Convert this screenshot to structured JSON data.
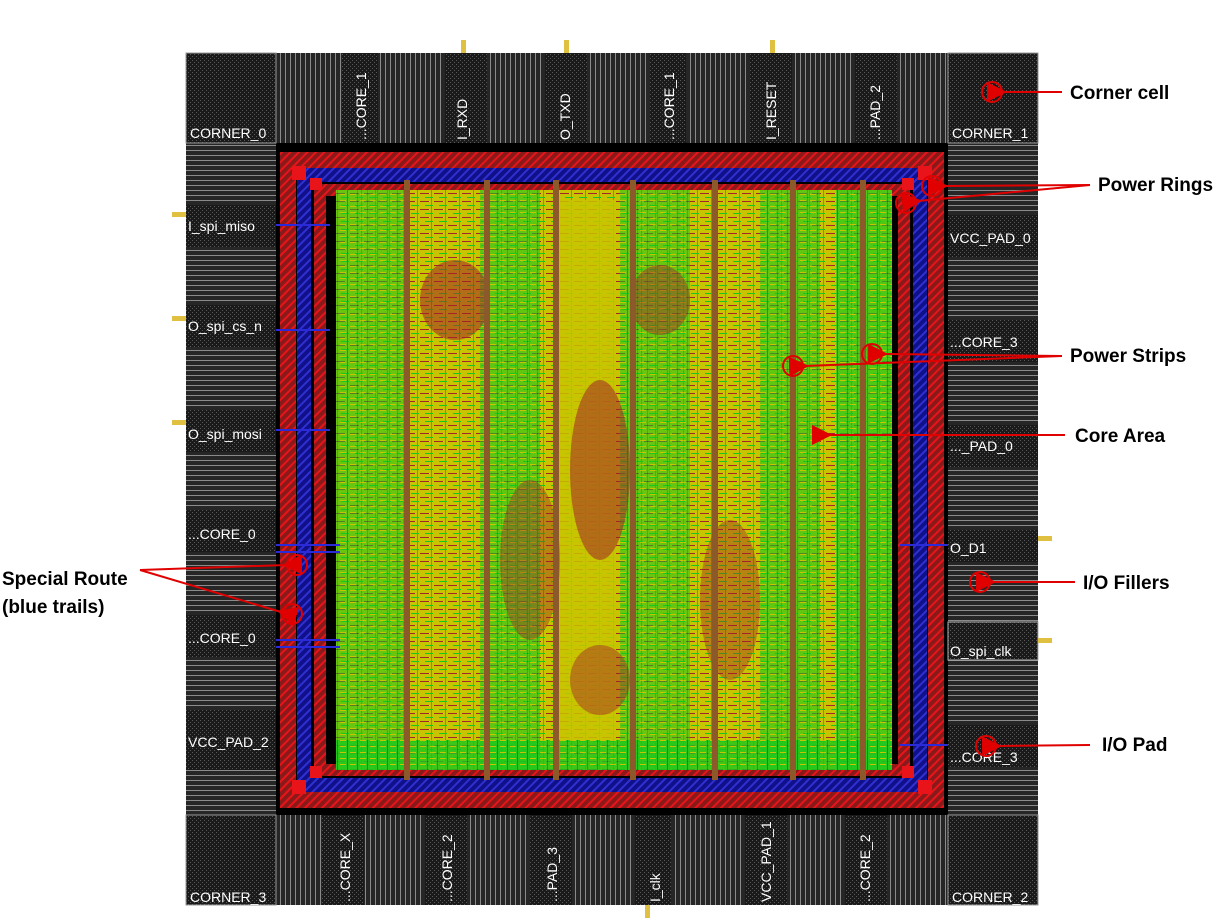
{
  "corners": {
    "top_left": "CORNER_0",
    "top_right": "CORNER_1",
    "bottom_left": "CORNER_3",
    "bottom_right": "CORNER_2"
  },
  "top_pads": [
    "...CORE_1",
    "I_RXD",
    "O_TXD",
    "...CORE_1",
    "I_RESET",
    "...PAD_2"
  ],
  "bottom_pads": [
    "...CORE_X",
    "...CORE_2",
    "...PAD_3",
    "I_clk",
    "VCC_PAD_1",
    "...CORE_2"
  ],
  "left_pads": [
    "I_spi_miso",
    "O_spi_cs_n",
    "O_spi_mosi",
    "...CORE_0",
    "...CORE_0",
    "VCC_PAD_2"
  ],
  "right_pads": [
    "VCC_PAD_0",
    "...CORE_3",
    "..._PAD_0",
    "O_D1",
    "O_spi_clk",
    "...CORE_3"
  ],
  "annotations": {
    "corner_cell": "Corner cell",
    "power_rings": "Power Rings",
    "power_strips": "Power Strips",
    "core_area": "Core Area",
    "io_fillers": "I/O Fillers",
    "io_pad": "I/O Pad",
    "special_route_line1": "Special Route",
    "special_route_line2": "(blue trails)"
  },
  "colors": {
    "pad_fill": "#1c1c1c",
    "filler_fill": "#2a2a2a",
    "ring_red": "#e8141a",
    "ring_blue": "#1a1ab4",
    "core_yellow": "#c9c400",
    "core_green": "#19c81e",
    "core_maroon": "#a0262a",
    "annotation_red": "#e00000"
  }
}
